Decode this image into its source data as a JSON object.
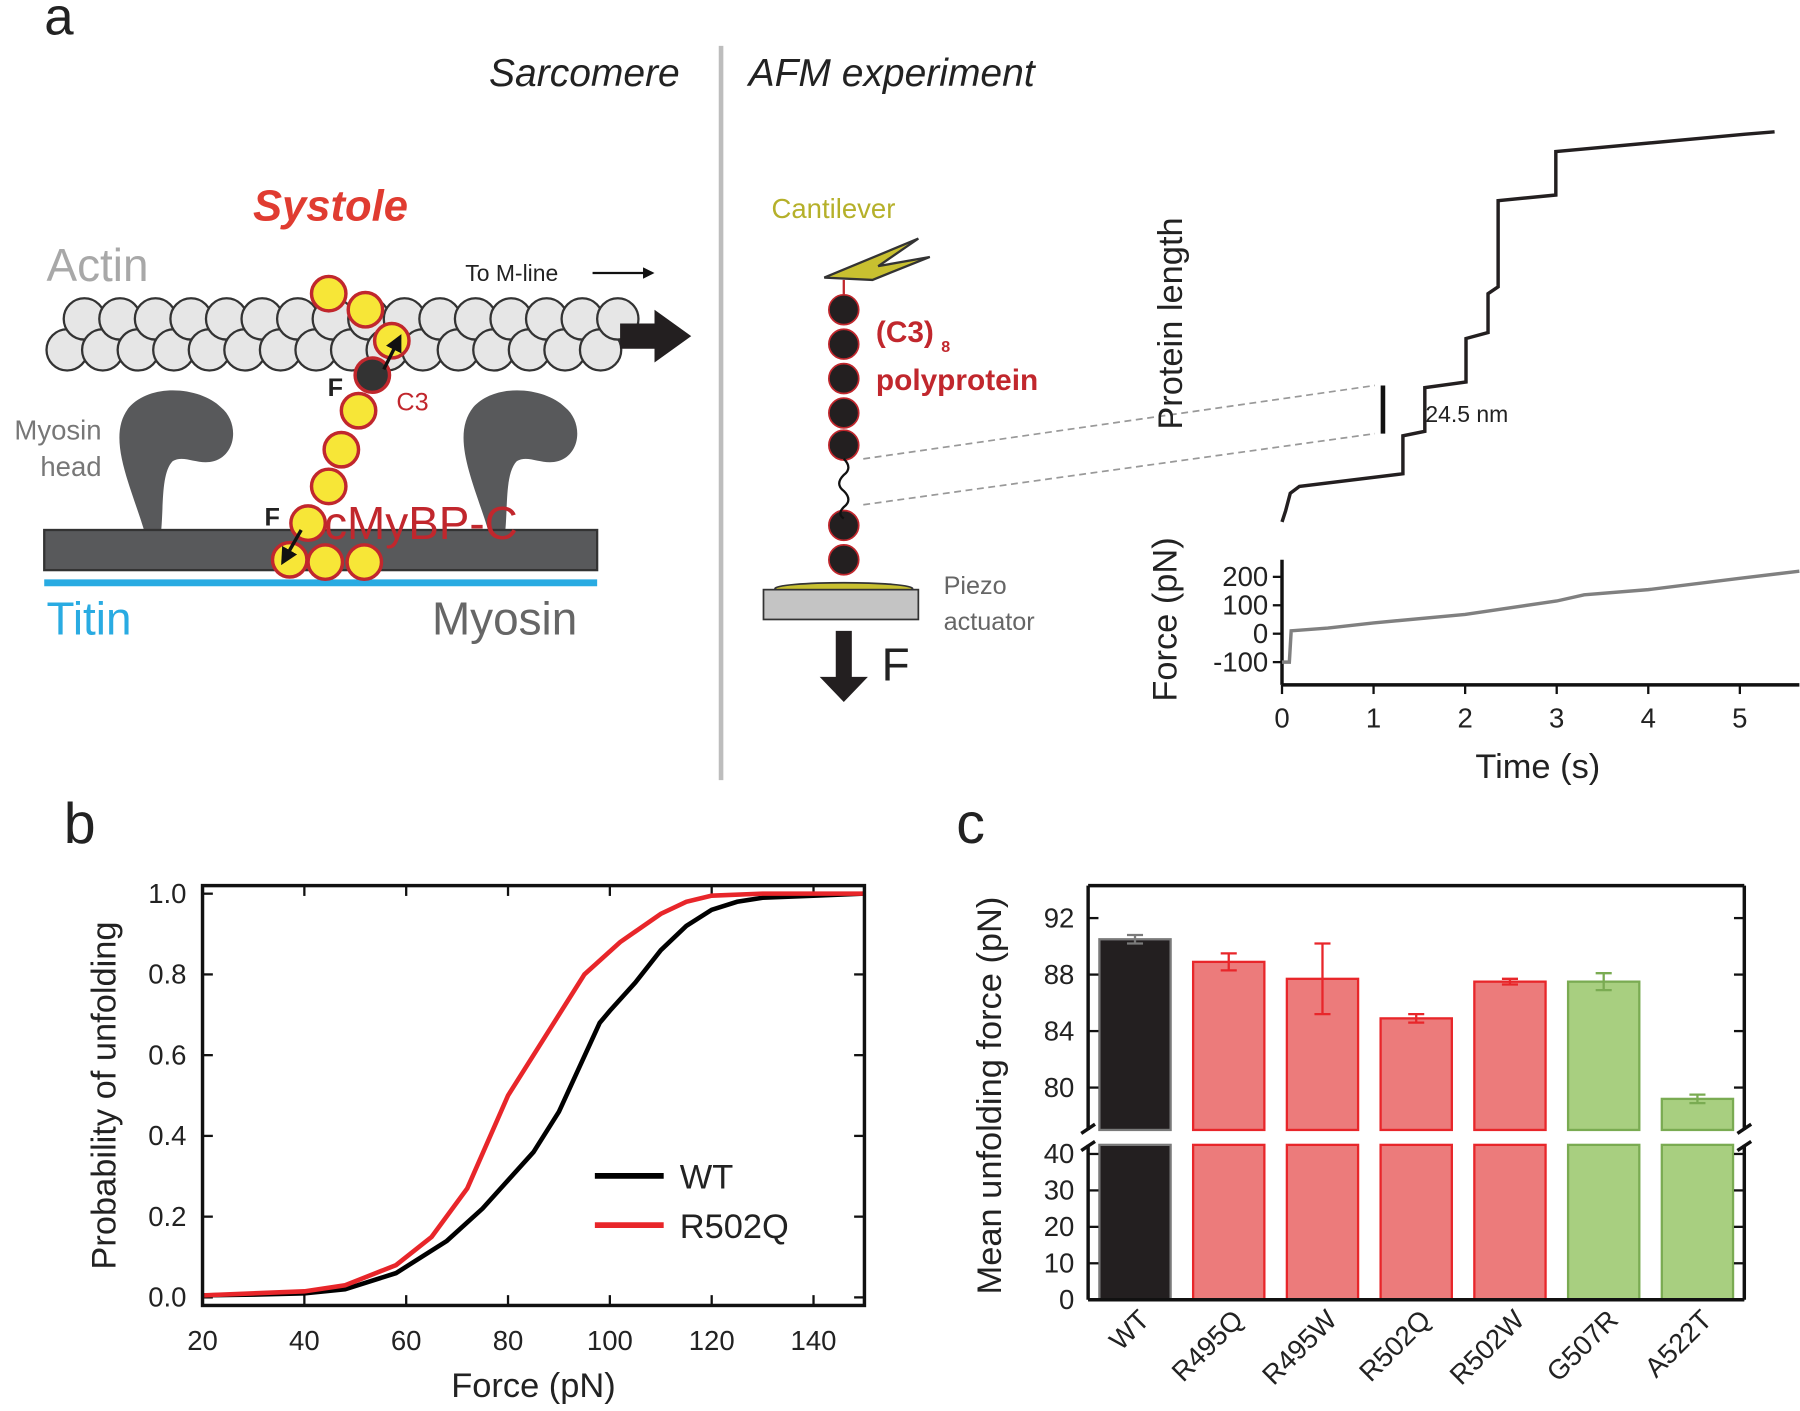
{
  "panels": [
    "a",
    "b",
    "c"
  ],
  "diagram": {
    "sarcomere_heading": "Sarcomere",
    "afm_heading": "AFM experiment",
    "systole": "Systole",
    "actin": "Actin",
    "to_m_line": "To M-line",
    "myosin_head": [
      "Myosin",
      "head"
    ],
    "force_labels": [
      "F",
      "F"
    ],
    "c3": "C3",
    "cmybpc": "cMyBP-C",
    "titin": "Titin",
    "myosin": "Myosin",
    "cantilever": "Cantilever",
    "polyprotein": {
      "name": "(C3)",
      "subscript": "8",
      "label": "polyprotein"
    },
    "piezo": [
      "Piezo",
      "actuator"
    ],
    "pull_force": "F"
  },
  "chart_data": [
    {
      "type": "line",
      "ylabel": "Protein length",
      "color": "#231f20",
      "x": [
        0,
        0.04,
        0.09,
        0.19,
        1.32,
        1.32,
        1.56,
        1.56,
        2.01,
        2.01,
        2.25,
        2.25,
        2.36,
        2.36,
        2.99,
        2.99,
        5.06,
        5.38
      ],
      "values": [
        0,
        5.8,
        14.6,
        18.1,
        24.5,
        43.8,
        46.1,
        68.3,
        71.2,
        93.3,
        96.3,
        116.1,
        119.6,
        163.4,
        166.3,
        188.4,
        197.2,
        198.4
      ],
      "scale_bar": {
        "value": 24.5,
        "label": "24.5 nm"
      }
    },
    {
      "type": "line",
      "ylabel": "Force (pN)",
      "xlabel": "Time (s)",
      "color": "#808080",
      "x": [
        0,
        0.08,
        0.1,
        0.5,
        1,
        2,
        3,
        3.3,
        4,
        5,
        5.65
      ],
      "values": [
        -100,
        -100,
        10,
        20,
        38,
        68,
        115,
        137,
        155,
        195,
        220
      ],
      "xlim": [
        0,
        5.65
      ],
      "ylim": [
        -180,
        260
      ],
      "xticks": [
        0,
        1,
        2,
        3,
        4,
        5
      ],
      "yticks": [
        -100,
        0,
        100,
        200
      ]
    },
    {
      "type": "line",
      "xlabel": "Force (pN)",
      "ylabel": "Probability of unfolding",
      "xlim": [
        20,
        150
      ],
      "ylim": [
        -0.02,
        1.02
      ],
      "xticks": [
        20,
        40,
        60,
        80,
        100,
        120,
        140
      ],
      "yticks": [
        {
          "value": 0,
          "label": "0.0"
        },
        0.2,
        0.4,
        0.6,
        0.8,
        {
          "value": 1,
          "label": "1.0"
        }
      ],
      "legend": "lower right",
      "series": [
        {
          "name": "WT",
          "color": "#000000",
          "x": [
            20,
            30,
            40,
            48,
            58,
            68,
            75,
            85,
            90,
            98,
            100,
            105,
            110,
            115,
            120,
            125,
            130,
            140,
            150
          ],
          "values": [
            0.005,
            0.007,
            0.01,
            0.02,
            0.06,
            0.14,
            0.22,
            0.36,
            0.46,
            0.68,
            0.71,
            0.78,
            0.86,
            0.92,
            0.96,
            0.98,
            0.99,
            0.995,
            1.0
          ]
        },
        {
          "name": "R502Q",
          "color": "#e8262a",
          "x": [
            20,
            40,
            48,
            58,
            65,
            72,
            80,
            90,
            95,
            102,
            110,
            115,
            120,
            130,
            150
          ],
          "values": [
            0.005,
            0.015,
            0.03,
            0.08,
            0.15,
            0.27,
            0.5,
            0.7,
            0.8,
            0.88,
            0.95,
            0.98,
            0.995,
            1.0,
            1.0
          ]
        }
      ]
    },
    {
      "type": "bar",
      "ylabel": "Mean unfolding force (pN)",
      "categories": [
        "WT",
        "R495Q",
        "R495W",
        "R502Q",
        "R502W",
        "G507R",
        "A522T"
      ],
      "values": [
        90.5,
        88.9,
        87.7,
        84.9,
        87.5,
        87.5,
        79.2
      ],
      "errors": [
        0.3,
        0.6,
        2.5,
        0.3,
        0.2,
        0.6,
        0.3
      ],
      "colors": [
        "#231f20",
        "#ec7b7b",
        "#ec7b7b",
        "#ec7b7b",
        "#ec7b7b",
        "#a8cf80",
        "#a8cf80"
      ],
      "edge_colors": [
        "#7a7a7a",
        "#e8262a",
        "#e8262a",
        "#e8262a",
        "#e8262a",
        "#7aab52",
        "#7aab52"
      ],
      "ylim": [
        0,
        94.3
      ],
      "y_break": [
        42.5,
        77
      ],
      "yticks": [
        0,
        10,
        20,
        30,
        40,
        80,
        84,
        88,
        92
      ]
    }
  ]
}
